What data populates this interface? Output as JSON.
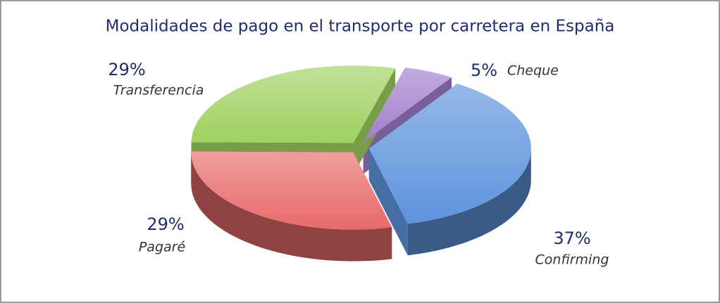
{
  "chart_data": {
    "type": "pie",
    "title": "Modalidades de pago en el transporte por carretera en España",
    "categories": [
      "Cheque",
      "Confirming",
      "Pagaré",
      "Transferencia"
    ],
    "values": [
      5,
      37,
      29,
      29
    ],
    "value_labels": [
      "5%",
      "37%",
      "29%",
      "29%"
    ],
    "colors": [
      "#a17fcc",
      "#5d93dc",
      "#e86a6a",
      "#9fd160"
    ]
  }
}
